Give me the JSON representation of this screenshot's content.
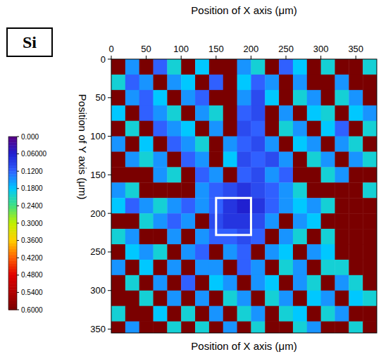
{
  "chart_data": {
    "type": "heatmap",
    "title": "Si",
    "x_label": "Position of X axis (μm)",
    "y_label": "Position of Y axis (μm)",
    "xlim": [
      0,
      380
    ],
    "ylim": [
      0,
      355
    ],
    "xticks": [
      0,
      50,
      100,
      150,
      200,
      250,
      300,
      350
    ],
    "yticks": [
      0,
      50,
      100,
      150,
      200,
      250,
      300,
      350
    ],
    "x_edges": [
      0,
      20,
      40,
      60,
      80,
      100,
      120,
      140,
      160,
      180,
      200,
      220,
      240,
      260,
      280,
      300,
      320,
      340,
      360,
      380
    ],
    "y_edges": [
      0,
      20,
      40,
      60,
      80,
      100,
      120,
      140,
      160,
      180,
      200,
      220,
      240,
      260,
      280,
      300,
      320,
      340,
      360
    ],
    "cells": [
      [
        0.6,
        0.15,
        0.6,
        0.12,
        0.2,
        0.6,
        0.18,
        0.6,
        0.6,
        0.15,
        0.2,
        0.6,
        0.12,
        0.18,
        0.6,
        0.2,
        0.6,
        0.6,
        0.2
      ],
      [
        0.2,
        0.12,
        0.15,
        0.6,
        0.15,
        0.18,
        0.6,
        0.12,
        0.6,
        0.18,
        0.12,
        0.15,
        0.6,
        0.15,
        0.6,
        0.6,
        0.15,
        0.6,
        0.6
      ],
      [
        0.6,
        0.15,
        0.12,
        0.18,
        0.6,
        0.15,
        0.12,
        0.6,
        0.6,
        0.15,
        0.1,
        0.18,
        0.6,
        0.2,
        0.15,
        0.6,
        0.2,
        0.15,
        0.6
      ],
      [
        0.18,
        0.6,
        0.12,
        0.15,
        0.2,
        0.6,
        0.15,
        0.2,
        0.6,
        0.12,
        0.1,
        0.6,
        0.15,
        0.6,
        0.18,
        0.2,
        0.6,
        0.18,
        0.15
      ],
      [
        0.6,
        0.2,
        0.6,
        0.12,
        0.15,
        0.18,
        0.6,
        0.15,
        0.6,
        0.1,
        0.12,
        0.6,
        0.2,
        0.15,
        0.6,
        0.18,
        0.12,
        0.6,
        0.2
      ],
      [
        0.15,
        0.6,
        0.18,
        0.6,
        0.12,
        0.15,
        0.2,
        0.6,
        0.15,
        0.12,
        0.1,
        0.15,
        0.6,
        0.18,
        0.15,
        0.6,
        0.15,
        0.2,
        0.6
      ],
      [
        0.6,
        0.15,
        0.2,
        0.15,
        0.6,
        0.12,
        0.15,
        0.6,
        0.18,
        0.1,
        0.12,
        0.1,
        0.15,
        0.6,
        0.2,
        0.15,
        0.6,
        0.15,
        0.2
      ],
      [
        0.6,
        0.6,
        0.6,
        0.15,
        0.2,
        0.6,
        0.12,
        0.15,
        0.6,
        0.12,
        0.1,
        0.15,
        0.12,
        0.6,
        0.6,
        0.2,
        0.15,
        0.6,
        0.6
      ],
      [
        0.15,
        0.2,
        0.6,
        0.6,
        0.6,
        0.6,
        0.15,
        0.12,
        0.1,
        0.08,
        0.1,
        0.12,
        0.15,
        0.2,
        0.6,
        0.6,
        0.6,
        0.6,
        0.2
      ],
      [
        0.18,
        0.12,
        0.15,
        0.2,
        0.15,
        0.12,
        0.15,
        0.12,
        0.08,
        0.06,
        0.08,
        0.12,
        0.15,
        0.18,
        0.15,
        0.2,
        0.6,
        0.6,
        0.6
      ],
      [
        0.6,
        0.6,
        0.2,
        0.15,
        0.12,
        0.15,
        0.6,
        0.1,
        0.08,
        0.08,
        0.1,
        0.15,
        0.6,
        0.15,
        0.18,
        0.6,
        0.6,
        0.6,
        0.6
      ],
      [
        0.2,
        0.15,
        0.6,
        0.6,
        0.15,
        0.6,
        0.15,
        0.12,
        0.12,
        0.1,
        0.12,
        0.6,
        0.15,
        0.2,
        0.6,
        0.2,
        0.6,
        0.6,
        0.6
      ],
      [
        0.6,
        0.18,
        0.15,
        0.2,
        0.6,
        0.15,
        0.12,
        0.6,
        0.15,
        0.12,
        0.6,
        0.15,
        0.18,
        0.6,
        0.15,
        0.18,
        0.6,
        0.6,
        0.6
      ],
      [
        0.15,
        0.6,
        0.18,
        0.6,
        0.15,
        0.6,
        0.15,
        0.15,
        0.6,
        0.12,
        0.15,
        0.6,
        0.2,
        0.15,
        0.6,
        0.2,
        0.2,
        0.6,
        0.6
      ],
      [
        0.6,
        0.2,
        0.6,
        0.15,
        0.6,
        0.12,
        0.6,
        0.18,
        0.15,
        0.6,
        0.15,
        0.18,
        0.6,
        0.15,
        0.2,
        0.6,
        0.15,
        0.2,
        0.6
      ],
      [
        0.6,
        0.6,
        0.2,
        0.6,
        0.15,
        0.6,
        0.15,
        0.6,
        0.2,
        0.15,
        0.6,
        0.2,
        0.15,
        0.6,
        0.18,
        0.15,
        0.6,
        0.18,
        0.2
      ],
      [
        0.2,
        0.6,
        0.6,
        0.18,
        0.6,
        0.2,
        0.6,
        0.15,
        0.6,
        0.2,
        0.15,
        0.6,
        0.2,
        0.18,
        0.6,
        0.2,
        0.15,
        0.6,
        0.6
      ],
      [
        0.6,
        0.15,
        0.6,
        0.6,
        0.2,
        0.6,
        0.2,
        0.6,
        0.15,
        0.6,
        0.2,
        0.6,
        0.6,
        0.2,
        0.15,
        0.6,
        0.6,
        0.2,
        0.6
      ]
    ],
    "colorbar": {
      "range": [
        0,
        0.6
      ],
      "ticks": [
        {
          "value": 0,
          "label": "0.000"
        },
        {
          "value": 0.06,
          "label": "0.06000"
        },
        {
          "value": 0.12,
          "label": "0.1200"
        },
        {
          "value": 0.18,
          "label": "0.1800"
        },
        {
          "value": 0.24,
          "label": "0.2400"
        },
        {
          "value": 0.3,
          "label": "0.3000"
        },
        {
          "value": 0.36,
          "label": "0.3600"
        },
        {
          "value": 0.42,
          "label": "0.4200"
        },
        {
          "value": 0.48,
          "label": "0.4800"
        },
        {
          "value": 0.54,
          "label": "0.5400"
        },
        {
          "value": 0.6,
          "label": "0.6000"
        }
      ]
    },
    "highlight_box": {
      "x": [
        150,
        200
      ],
      "y": [
        180,
        228
      ]
    }
  }
}
